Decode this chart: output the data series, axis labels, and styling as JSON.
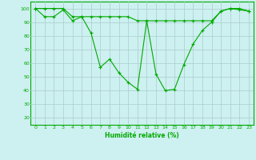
{
  "xlabel": "Humidité relative (%)",
  "ylabel": "",
  "background_color": "#cdf0f0",
  "grid_color": "#aacccc",
  "line_color": "#00aa00",
  "marker": "+",
  "xlim": [
    -0.5,
    23.5
  ],
  "ylim": [
    15,
    105
  ],
  "yticks": [
    20,
    30,
    40,
    50,
    60,
    70,
    80,
    90,
    100
  ],
  "xticks": [
    0,
    1,
    2,
    3,
    4,
    5,
    6,
    7,
    8,
    9,
    10,
    11,
    12,
    13,
    14,
    15,
    16,
    17,
    18,
    19,
    20,
    21,
    22,
    23
  ],
  "line1": [
    100,
    94,
    94,
    99,
    91,
    94,
    82,
    57,
    63,
    53,
    46,
    41,
    91,
    52,
    40,
    41,
    59,
    74,
    84,
    90,
    98,
    100,
    99,
    98
  ],
  "line2": [
    100,
    100,
    100,
    100,
    94,
    94,
    94,
    94,
    94,
    94,
    94,
    91,
    91,
    91,
    91,
    91,
    91,
    91,
    91,
    91,
    98,
    100,
    100,
    98
  ]
}
